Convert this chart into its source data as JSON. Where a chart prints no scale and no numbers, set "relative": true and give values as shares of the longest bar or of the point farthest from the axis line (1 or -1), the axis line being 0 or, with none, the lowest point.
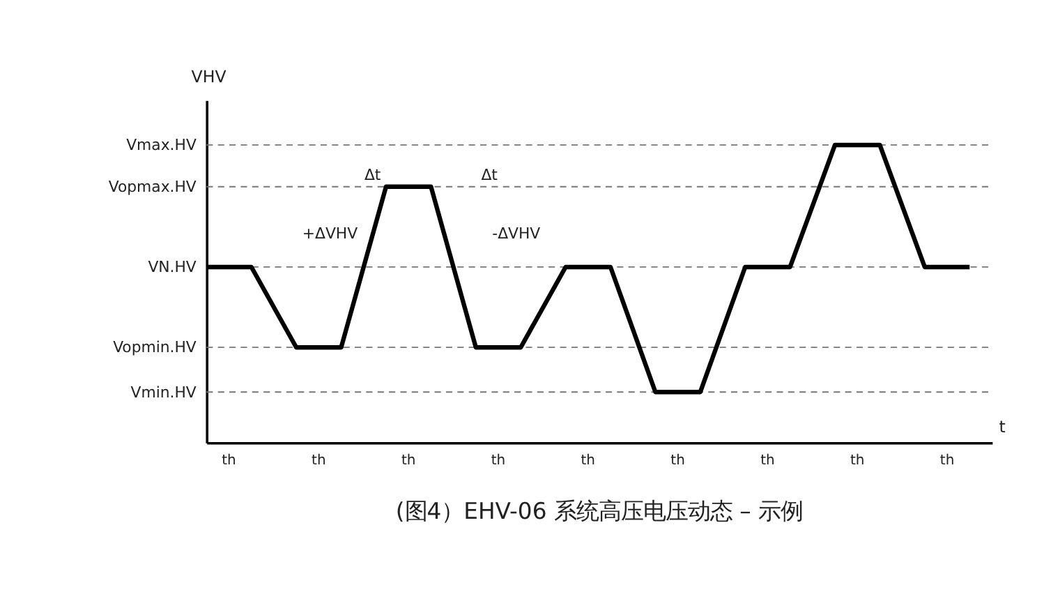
{
  "chart_data": {
    "type": "line",
    "relative": true,
    "ylabel": "VHV",
    "xlabel": "t",
    "categories": [
      null,
      null,
      null,
      null,
      null,
      null,
      null,
      null,
      null,
      null,
      null,
      null,
      null,
      null,
      null,
      null,
      null,
      null
    ],
    "series": [
      {
        "color": "#000000",
        "values": [
          0.59,
          0.59,
          0.32,
          0.32,
          0.86,
          0.86,
          0.32,
          0.32,
          0.59,
          0.59,
          0.17,
          0.17,
          0.59,
          0.59,
          1,
          1,
          0.59,
          0.59
        ]
      }
    ],
    "ref_lines": [
      {
        "axis": "y",
        "value": 1,
        "label": "Vmax.HV",
        "line_style": "dashed"
      },
      {
        "axis": "y",
        "value": 0.86,
        "label": "Vopmax.HV",
        "line_style": "dashed"
      },
      {
        "axis": "y",
        "value": 0.59,
        "label": "VN.HV",
        "line_style": "dashed"
      },
      {
        "axis": "y",
        "value": 0.32,
        "label": "Vopmin.HV",
        "line_style": "dashed"
      },
      {
        "axis": "y",
        "value": 0.17,
        "label": "Vmin.HV",
        "line_style": "dashed"
      }
    ],
    "annotations": [
      "th",
      "th",
      "th",
      "th",
      "th",
      "th",
      "th",
      "th",
      "th",
      "+ΔVHV",
      "Δt",
      "Δt",
      "-ΔVHV",
      "(图4）EHV-06 系统高压电压动态 – 示例"
    ],
    "tick_labels": false,
    "grid": false,
    "marker": "none",
    "line_style": "solid"
  }
}
